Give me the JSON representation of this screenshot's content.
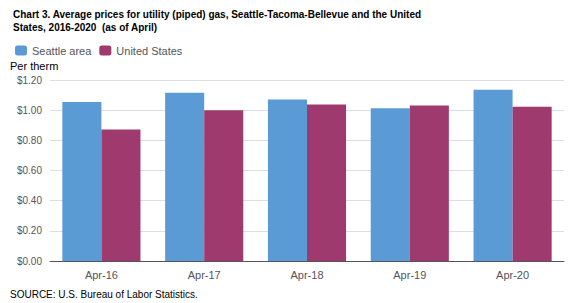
{
  "chart_data": {
    "type": "bar",
    "title": "Chart 3. Average prices for utility (piped) gas, Seattle-Tacoma-Bellevue and the United",
    "subtitle": "States, 2016-2020  (as of April)",
    "ylabel": "Per therm",
    "annotations": [
      "SOURCE: U.S. Bureau of Labor Statistics."
    ],
    "categories": [
      "Apr-16",
      "Apr-17",
      "Apr-18",
      "Apr-19",
      "Apr-20"
    ],
    "series": [
      {
        "name": "Seattle area",
        "color": "#5B9BD5",
        "values": [
          1.054,
          1.115,
          1.071,
          1.012,
          1.136
        ]
      },
      {
        "name": "United States",
        "color": "#9E3A6E",
        "values": [
          0.872,
          0.999,
          1.038,
          1.031,
          1.022
        ]
      }
    ],
    "ylim": [
      0,
      1.2
    ],
    "yticks": [
      {
        "value": 0,
        "label": "$0.00"
      },
      {
        "value": 0.2,
        "label": "$0.20"
      },
      {
        "value": 0.4,
        "label": "$0.40"
      },
      {
        "value": 0.6,
        "label": "$0.60"
      },
      {
        "value": 0.8,
        "label": "$0.80"
      },
      {
        "value": 1.0,
        "label": "$1.00"
      },
      {
        "value": 1.2,
        "label": "$1.20"
      }
    ],
    "grid": true,
    "legend": "upper left"
  }
}
